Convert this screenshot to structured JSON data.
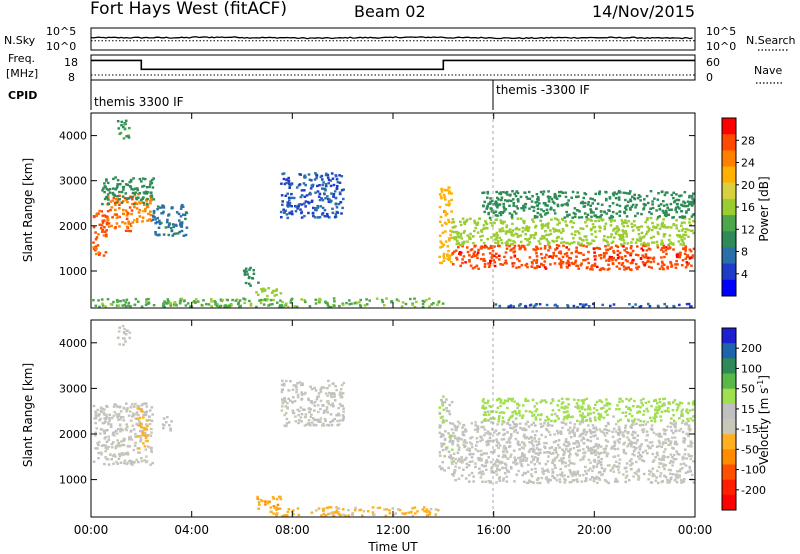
{
  "header": {
    "station": "Fort Hays West (fitACF)",
    "beam": "Beam 02",
    "date": "14/Nov/2015"
  },
  "noise_panel": {
    "left_label": "N.Sky",
    "left_ticks": [
      "10^5",
      "10^0"
    ],
    "right_label": "N.Search",
    "right_ticks": [
      "10^5",
      "10^0"
    ]
  },
  "freq_panel": {
    "left_label_1": "Freq.",
    "left_label_2": "[MHz]",
    "left_ticks": [
      "18",
      "8"
    ],
    "right_label": "Nave",
    "right_ticks": [
      "60",
      "0"
    ],
    "cpid_label": "CPID",
    "cpid_1": "themis 3300 IF",
    "cpid_2": "themis -3300 IF"
  },
  "axes": {
    "ylabel": "Slant Range [km]",
    "xlabel": "Time UT",
    "xticks": [
      "00:00",
      "04:00",
      "08:00",
      "12:00",
      "16:00",
      "20:00",
      "00:00"
    ],
    "yticks": [
      "1000",
      "2000",
      "3000",
      "4000"
    ]
  },
  "colorbars": {
    "power": {
      "label": "Power [dB]",
      "ticks": [
        "28",
        "24",
        "20",
        "16",
        "12",
        "8",
        "4"
      ],
      "colors": [
        "#ff0000",
        "#ff4800",
        "#ff7f00",
        "#ffb000",
        "#d9d040",
        "#9acd32",
        "#4ca64c",
        "#2e8b57",
        "#2a6fa8",
        "#1e3cc8",
        "#0000ff"
      ]
    },
    "velocity": {
      "label": "Velocity [m s",
      "label_sup": "-1",
      "label_end": "]",
      "ticks": [
        "200",
        "100",
        "50",
        "15",
        "-15",
        "-50",
        "-100",
        "-200"
      ],
      "colors": [
        "#1e1ed2",
        "#1e64aa",
        "#2e8b57",
        "#58b848",
        "#a0e050",
        "#c0c0c0",
        "#c8c8b8",
        "#ffb020",
        "#ff8c00",
        "#ff5000",
        "#ff1e00",
        "#ff0000"
      ]
    }
  },
  "chart_data": [
    {
      "type": "line",
      "title": "N.Sky / N.Search",
      "x": [
        0,
        2,
        4,
        6,
        8,
        10,
        12,
        14,
        16,
        18,
        20,
        22,
        24
      ],
      "series": [
        {
          "name": "N.Sky",
          "values": [
            2.8,
            2.8,
            2.9,
            2.8,
            2.7,
            2.8,
            2.9,
            2.8,
            2.7,
            2.8,
            2.8,
            2.7,
            2.8
          ]
        },
        {
          "name": "N.Search",
          "values": [
            2.1,
            2.1,
            2.1,
            2.1,
            2.1,
            2.1,
            2.1,
            2.1,
            2.1,
            2.1,
            2.1,
            2.1,
            2.1
          ]
        }
      ],
      "xlim": [
        0,
        24
      ],
      "ylabel": "N.Sky"
    },
    {
      "type": "line",
      "title": "Freq / Nave",
      "x": [
        0,
        2,
        2,
        14,
        14,
        24
      ],
      "series": [
        {
          "name": "Freq.",
          "values": [
            17,
            17,
            12,
            12,
            17,
            17
          ]
        },
        {
          "name": "Nave",
          "values": [
            12,
            12,
            12,
            12,
            12,
            12
          ]
        }
      ],
      "xlim": [
        0,
        24
      ],
      "ylabel": "Freq. [MHz]"
    },
    {
      "type": "heatmap",
      "title": "Power",
      "xlabel": "Time UT",
      "ylabel": "Slant Range [km]",
      "xlim": [
        0,
        24
      ],
      "ylim": [
        180,
        4500
      ],
      "colorbar": "Power [dB]",
      "colorbar_range": [
        0,
        32
      ],
      "regions": [
        {
          "t0": 0.0,
          "t1": 0.6,
          "r0": 1350,
          "r1": 2450,
          "level": 27
        },
        {
          "t0": 0.6,
          "t1": 1.6,
          "r0": 1900,
          "r1": 2700,
          "level": 26
        },
        {
          "t0": 1.6,
          "t1": 2.4,
          "r0": 2100,
          "r1": 2750,
          "level": 24
        },
        {
          "t0": 1.0,
          "t1": 1.5,
          "r0": 3950,
          "r1": 4400,
          "level": 12
        },
        {
          "t0": 0.4,
          "t1": 2.5,
          "r0": 2500,
          "r1": 3100,
          "level": 10
        },
        {
          "t0": 2.4,
          "t1": 3.8,
          "r0": 1800,
          "r1": 2500,
          "level": 8
        },
        {
          "t0": 6.0,
          "t1": 6.6,
          "r0": 700,
          "r1": 1100,
          "level": 10
        },
        {
          "t0": 6.5,
          "t1": 7.5,
          "r0": 380,
          "r1": 650,
          "level": 16
        },
        {
          "t0": 7.2,
          "t1": 7.8,
          "r0": 200,
          "r1": 300,
          "level": 12
        },
        {
          "t0": 7.5,
          "t1": 10.0,
          "r0": 2200,
          "r1": 3200,
          "level": 6
        },
        {
          "t0": 13.8,
          "t1": 14.3,
          "r0": 1200,
          "r1": 2900,
          "level": 22
        },
        {
          "t0": 14.3,
          "t1": 24.0,
          "r0": 1050,
          "r1": 1600,
          "level": 28
        },
        {
          "t0": 14.3,
          "t1": 24.0,
          "r0": 1600,
          "r1": 2200,
          "level": 16
        },
        {
          "t0": 15.5,
          "t1": 24.0,
          "r0": 2200,
          "r1": 2800,
          "level": 10
        },
        {
          "t0": 0.0,
          "t1": 14.0,
          "r0": 190,
          "r1": 420,
          "level": 14
        },
        {
          "t0": 16.0,
          "t1": 24.0,
          "r0": 190,
          "r1": 300,
          "level": 6
        }
      ]
    },
    {
      "type": "heatmap",
      "title": "Velocity",
      "xlabel": "Time UT",
      "ylabel": "Slant Range [km]",
      "xlim": [
        0,
        24
      ],
      "ylim": [
        180,
        4500
      ],
      "colorbar": "Velocity [m s-1]",
      "colorbar_range": [
        -250,
        250
      ],
      "regions": [
        {
          "t0": 0.0,
          "t1": 2.4,
          "r0": 1350,
          "r1": 2700,
          "level": 0
        },
        {
          "t0": 1.8,
          "t1": 2.2,
          "r0": 1700,
          "r1": 2600,
          "level": -60
        },
        {
          "t0": 1.0,
          "t1": 1.5,
          "r0": 3950,
          "r1": 4400,
          "level": 0
        },
        {
          "t0": 2.8,
          "t1": 3.2,
          "r0": 2100,
          "r1": 2400,
          "level": 30
        },
        {
          "t0": 6.5,
          "t1": 7.5,
          "r0": 380,
          "r1": 650,
          "level": -80
        },
        {
          "t0": 7.0,
          "t1": 13.8,
          "r0": 190,
          "r1": 420,
          "level": -50
        },
        {
          "t0": 13.8,
          "t1": 14.3,
          "r0": 1200,
          "r1": 2900,
          "level": 30
        },
        {
          "t0": 14.3,
          "t1": 24.0,
          "r0": 950,
          "r1": 2300,
          "level": 0
        },
        {
          "t0": 15.5,
          "t1": 24.0,
          "r0": 2300,
          "r1": 2800,
          "level": 60
        },
        {
          "t0": 7.5,
          "t1": 10.0,
          "r0": 2200,
          "r1": 3200,
          "level": 0
        }
      ]
    }
  ]
}
